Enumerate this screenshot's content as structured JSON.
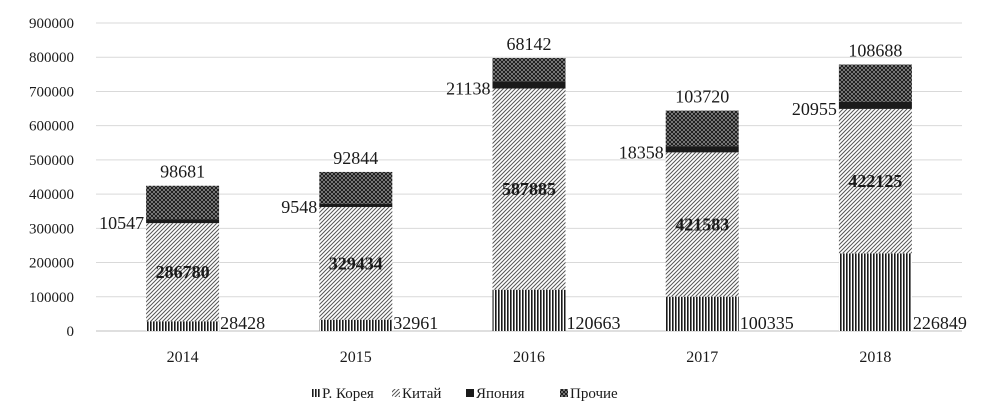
{
  "chart_data": {
    "type": "bar",
    "stacked": true,
    "categories": [
      "2014",
      "2015",
      "2016",
      "2017",
      "2018"
    ],
    "series": [
      {
        "name": "Р. Корея",
        "values": [
          28428,
          32961,
          120663,
          100335,
          226849
        ],
        "pattern": "vertical"
      },
      {
        "name": "Китай",
        "values": [
          286780,
          329434,
          587885,
          421583,
          422125
        ],
        "pattern": "diagonal"
      },
      {
        "name": "Япония",
        "values": [
          10547,
          9548,
          21138,
          18358,
          20955
        ],
        "pattern": "solid"
      },
      {
        "name": "Прочие",
        "values": [
          98681,
          92844,
          68142,
          103720,
          108688
        ],
        "pattern": "crosshatch"
      }
    ],
    "y_ticks": [
      "0",
      "100000",
      "200000",
      "300000",
      "400000",
      "500000",
      "600000",
      "700000",
      "800000",
      "900000"
    ],
    "ylim": [
      0,
      900000
    ],
    "grid": true,
    "legend_position": "bottom",
    "colors": {
      "ink": "#1a1a1a",
      "grid": "#d9d9d9",
      "axis": "#bfbfbf"
    }
  }
}
